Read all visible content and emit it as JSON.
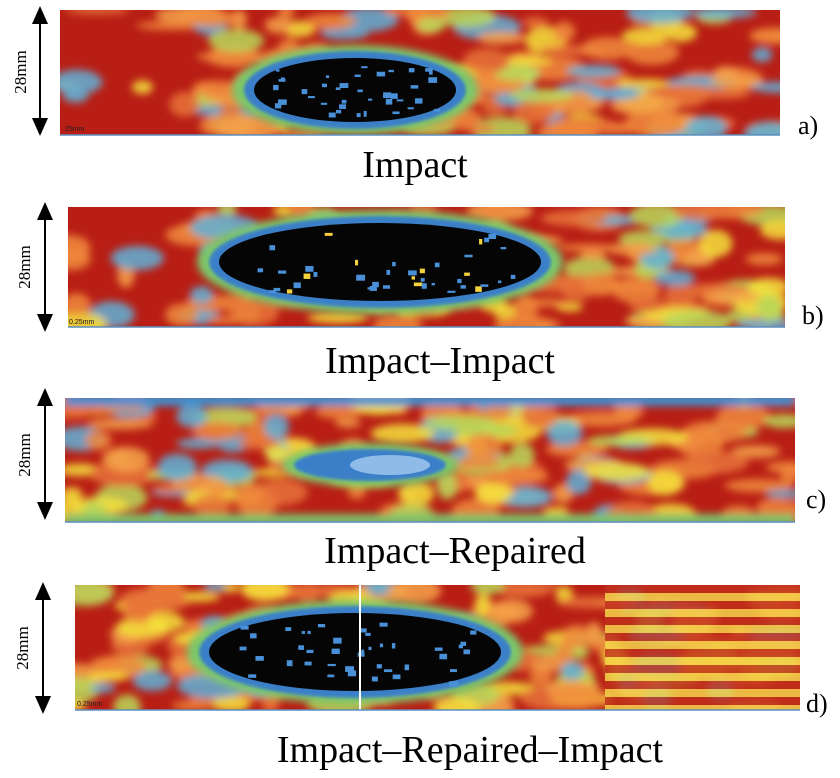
{
  "panels": [
    {
      "dimension": "28mm",
      "scale_label": ".25mm",
      "letter": "a)",
      "caption": "Impact"
    },
    {
      "dimension": "28mm",
      "scale_label": "0.25mm",
      "letter": "b)",
      "caption": "Impact–Impact"
    },
    {
      "dimension": "28mm",
      "letter": "c)",
      "caption": "Impact–Repaired"
    },
    {
      "dimension": "28mm",
      "scale_label": "0.25mm",
      "letter": "d)",
      "caption": "Impact–Repaired–Impact"
    }
  ]
}
